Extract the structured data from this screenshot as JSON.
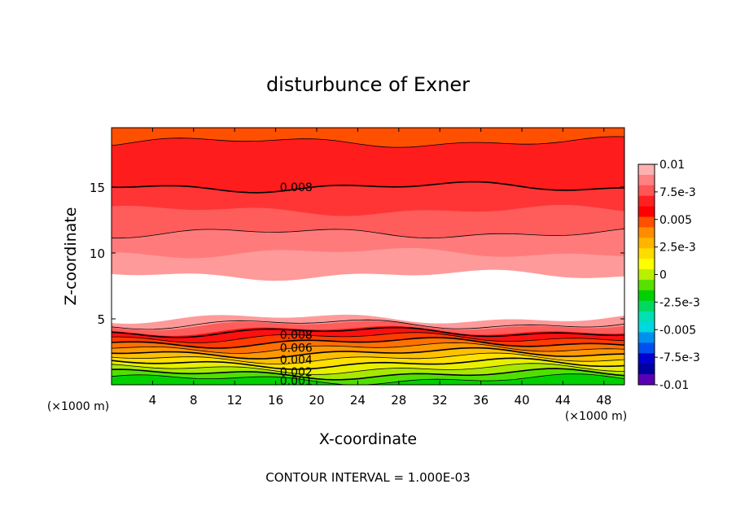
{
  "chart_data": {
    "type": "heatmap",
    "subtype": "filled-contour",
    "title": "disturbunce of Exner",
    "xlabel": "X-coordinate",
    "ylabel": "Z-coordinate",
    "x_unit_label": "(×1000 m)",
    "y_unit_label": "(×1000 m)",
    "footer": "CONTOUR INTERVAL = 1.000E-03",
    "xlim": [
      0,
      50
    ],
    "ylim": [
      0,
      19.5
    ],
    "x_ticks": [
      4,
      8,
      12,
      16,
      20,
      24,
      28,
      32,
      36,
      40,
      44,
      48
    ],
    "y_ticks": [
      5,
      10,
      15
    ],
    "contour_interval": 0.001,
    "colorbar": {
      "min": -0.01,
      "max": 0.01,
      "tick_labels": [
        "0.01",
        "7.5e-3",
        "0.005",
        "2.5e-3",
        "0",
        "-2.5e-3",
        "-0.005",
        "-7.5e-3",
        "-0.01"
      ],
      "tick_values": [
        0.01,
        0.0075,
        0.005,
        0.0025,
        0,
        -0.0025,
        -0.005,
        -0.0075,
        -0.01
      ],
      "colors_top_to_bottom": [
        "#ffb0b0",
        "#ff8080",
        "#ff5555",
        "#ff2020",
        "#ff0000",
        "#ff5000",
        "#ff8c00",
        "#ffb400",
        "#ffdc00",
        "#ffff00",
        "#b8f000",
        "#58e000",
        "#00d000",
        "#00d860",
        "#00e0b0",
        "#00d8e0",
        "#0090f0",
        "#0050f0",
        "#0000d0",
        "#0000a0",
        "#5a00b4"
      ]
    },
    "bands": [
      {
        "z_bottom": 18.4,
        "z_top": 19.5,
        "value": 0.0095,
        "color": "#ff5000"
      },
      {
        "z_bottom": 15.0,
        "z_top": 18.4,
        "value": 0.0085,
        "color": "#ff1c1c"
      },
      {
        "z_bottom": 13.2,
        "z_top": 15.0,
        "value": 0.0075,
        "color": "#ff3535"
      },
      {
        "z_bottom": 11.5,
        "z_top": 13.2,
        "value": 0.0065,
        "color": "#ff5c5c"
      },
      {
        "z_bottom": 10.0,
        "z_top": 11.5,
        "value": 0.0055,
        "color": "#ff7b7b"
      },
      {
        "z_bottom": 8.3,
        "z_top": 10.0,
        "value": 0.0045,
        "color": "#ff9a9a"
      },
      {
        "z_bottom": 5.0,
        "z_top": 8.3,
        "value": 0.0,
        "color": "#ffffff"
      },
      {
        "z_bottom": 4.5,
        "z_top": 5.0,
        "value": 0.0045,
        "color": "#ff9a9a"
      },
      {
        "z_bottom": 4.1,
        "z_top": 4.5,
        "value": 0.006,
        "color": "#ff5c5c"
      },
      {
        "z_bottom": 3.6,
        "z_top": 4.1,
        "value": 0.0085,
        "color": "#ff1010"
      },
      {
        "z_bottom": 3.2,
        "z_top": 3.6,
        "value": 0.0075,
        "color": "#ff3c00"
      },
      {
        "z_bottom": 2.8,
        "z_top": 3.2,
        "value": 0.0065,
        "color": "#ff7000"
      },
      {
        "z_bottom": 2.4,
        "z_top": 2.8,
        "value": 0.0055,
        "color": "#ff9800"
      },
      {
        "z_bottom": 2.0,
        "z_top": 2.4,
        "value": 0.0045,
        "color": "#ffc000"
      },
      {
        "z_bottom": 1.6,
        "z_top": 2.0,
        "value": 0.0035,
        "color": "#ffe000"
      },
      {
        "z_bottom": 1.2,
        "z_top": 1.6,
        "value": 0.0025,
        "color": "#e8f000"
      },
      {
        "z_bottom": 0.8,
        "z_top": 1.2,
        "value": 0.0015,
        "color": "#a8e800"
      },
      {
        "z_bottom": 0.4,
        "z_top": 0.8,
        "value": 0.0008,
        "color": "#50e000"
      },
      {
        "z_bottom": 0.0,
        "z_top": 0.4,
        "value": 0.0002,
        "color": "#00d000"
      }
    ],
    "contour_lines": [
      {
        "z": 18.4,
        "weight": "thin"
      },
      {
        "z": 15.0,
        "weight": "bold"
      },
      {
        "z": 11.5,
        "weight": "thin"
      },
      {
        "z": 4.6,
        "weight": "thin"
      },
      {
        "z": 4.0,
        "weight": "bold"
      },
      {
        "z": 3.6,
        "weight": "thin"
      },
      {
        "z": 3.2,
        "weight": "bold"
      },
      {
        "z": 2.8,
        "weight": "thin"
      },
      {
        "z": 2.4,
        "weight": "bold"
      },
      {
        "z": 2.0,
        "weight": "thin"
      },
      {
        "z": 1.6,
        "weight": "bold"
      },
      {
        "z": 1.2,
        "weight": "thin"
      },
      {
        "z": 0.8,
        "weight": "bold"
      },
      {
        "z": 0.4,
        "weight": "thin"
      }
    ],
    "contour_labels": [
      {
        "text": "0.008",
        "x": 18.0,
        "z": 15.0
      },
      {
        "text": "0.008",
        "x": 18.0,
        "z": 3.8
      },
      {
        "text": "0.006",
        "x": 18.0,
        "z": 2.8
      },
      {
        "text": "0.004",
        "x": 18.0,
        "z": 1.9
      },
      {
        "text": "0.002",
        "x": 18.0,
        "z": 1.0
      },
      {
        "text": "0.001",
        "x": 18.0,
        "z": 0.3
      }
    ]
  }
}
